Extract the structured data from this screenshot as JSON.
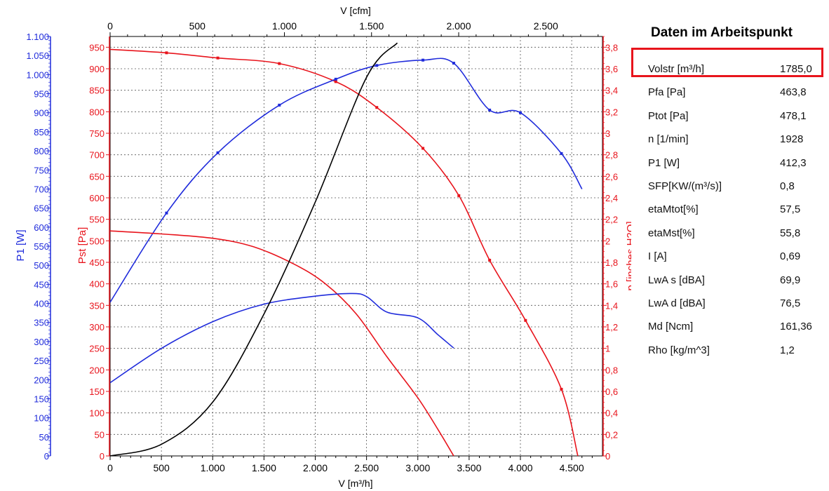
{
  "panel": {
    "title": "Daten im Arbeitspunkt",
    "rows": [
      {
        "label": "Volstr [m³/h]",
        "value": "1785,0"
      },
      {
        "label": "Pfa [Pa]",
        "value": "463,8"
      },
      {
        "label": "Ptot [Pa]",
        "value": "478,1"
      },
      {
        "label": "n [1/min]",
        "value": "1928"
      },
      {
        "label": "P1 [W]",
        "value": "412,3"
      },
      {
        "label": "SFP[KW/(m³/s)]",
        "value": "0,8"
      },
      {
        "label": "etaMtot[%]",
        "value": "57,5"
      },
      {
        "label": "etaMst[%]",
        "value": "55,8"
      },
      {
        "label": "I [A]",
        "value": "0,69"
      },
      {
        "label": "LwA s [dBA]",
        "value": "69,9"
      },
      {
        "label": "LwA d [dBA]",
        "value": "76,5"
      },
      {
        "label": "Md [Ncm]",
        "value": "161,36"
      },
      {
        "label": "Rho [kg/m^3]",
        "value": "1,2"
      }
    ]
  },
  "chart_data": {
    "type": "line",
    "xlabel": "V [m³/h]",
    "x2label": "V [cfm]",
    "y_left_outer_label": "P1 [W]",
    "y_left_inner_label": "Pst [Pa]",
    "y_right_label": "p [inches H2O]",
    "xlim": [
      0,
      4800
    ],
    "x2lim": [
      0,
      2825
    ],
    "ylim_pst": [
      0,
      975
    ],
    "ylim_p1": [
      0,
      1100
    ],
    "ylim_inch": [
      0,
      3.9
    ],
    "grid": true,
    "x_ticks": [
      "0",
      "500",
      "1.000",
      "1.500",
      "2.000",
      "2.500",
      "3.000",
      "3.500",
      "4.000",
      "4.500"
    ],
    "x2_ticks": [
      "0",
      "500",
      "1.000",
      "1.500",
      "2.000",
      "2.500"
    ],
    "pst_ticks": [
      "0",
      "50",
      "100",
      "150",
      "200",
      "250",
      "300",
      "350",
      "400",
      "450",
      "500",
      "550",
      "600",
      "650",
      "700",
      "750",
      "800",
      "850",
      "900",
      "950"
    ],
    "p1_ticks": [
      "0",
      "50",
      "100",
      "150",
      "200",
      "250",
      "300",
      "350",
      "400",
      "450",
      "500",
      "550",
      "600",
      "650",
      "700",
      "750",
      "800",
      "850",
      "900",
      "950",
      "1.000",
      "1.050",
      "1.100"
    ],
    "inch_ticks": [
      "0",
      "0,2",
      "0,4",
      "0,6",
      "0,8",
      "1",
      "1,2",
      "1,4",
      "1,6",
      "1,8",
      "2",
      "2,2",
      "2,4",
      "2,6",
      "2,8",
      "3",
      "3,2",
      "3,4",
      "3,6",
      "3,8"
    ],
    "series": [
      {
        "axis": "pst",
        "color": "#e8141c",
        "markers": true,
        "x": [
          0,
          550,
          1050,
          1650,
          2200,
          2600,
          3050,
          3400,
          3700,
          4050,
          4400,
          4560
        ],
        "y": [
          945,
          937,
          925,
          912,
          870,
          810,
          715,
          605,
          455,
          315,
          155,
          0
        ]
      },
      {
        "axis": "p1",
        "color": "#1f2bdb",
        "markers": true,
        "x": [
          0,
          550,
          1050,
          1650,
          2200,
          2600,
          3050,
          3350,
          3700,
          4000,
          4400,
          4600
        ],
        "y": [
          403,
          637,
          795,
          920,
          988,
          1024,
          1038,
          1030,
          907,
          900,
          793,
          700
        ]
      },
      {
        "axis": "pst",
        "color": "#e8141c",
        "markers": false,
        "x": [
          0,
          500,
          1000,
          1400,
          1800,
          2100,
          2400,
          2700,
          3000,
          3200,
          3350
        ],
        "y": [
          523,
          516,
          506,
          486,
          445,
          400,
          330,
          230,
          135,
          60,
          0
        ]
      },
      {
        "axis": "p1",
        "color": "#1f2bdb",
        "markers": false,
        "x": [
          0,
          500,
          1000,
          1500,
          2000,
          2350,
          2500,
          2700,
          3000,
          3200,
          3350
        ],
        "y": [
          192,
          282,
          352,
          398,
          419,
          426,
          418,
          377,
          362,
          317,
          283
        ]
      },
      {
        "axis": "pst",
        "color": "#000000",
        "markers": false,
        "x": [
          0,
          500,
          1000,
          1500,
          2000,
          2500,
          2800
        ],
        "y": [
          0,
          27,
          125,
          330,
          590,
          880,
          960
        ]
      }
    ]
  }
}
